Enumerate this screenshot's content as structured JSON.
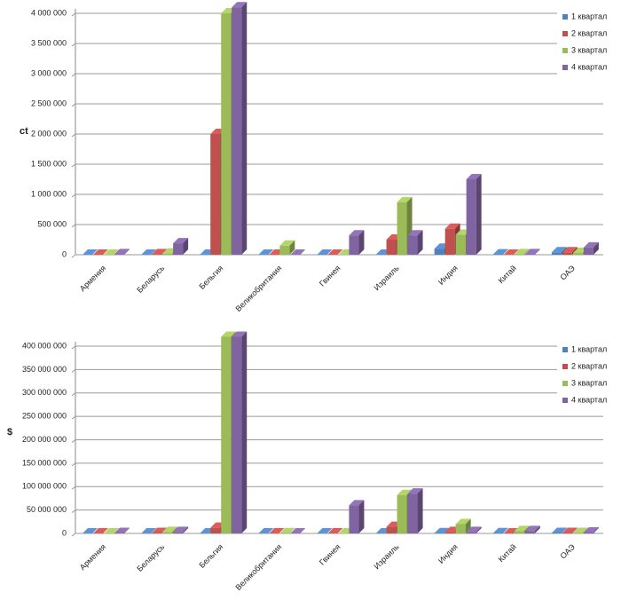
{
  "chart_data": [
    {
      "type": "bar",
      "y_label": "ct",
      "categories": [
        "Армения",
        "Беларусь",
        "Бельгия",
        "Великобритания",
        "Гвинея",
        "Израиль",
        "Индия",
        "Китай",
        "ОАЭ"
      ],
      "series": [
        {
          "name": "1 квартал",
          "color": "#4f81bd",
          "values": [
            0,
            0,
            0,
            0,
            0,
            0,
            100000,
            5000,
            40000
          ]
        },
        {
          "name": "2 квартал",
          "color": "#c0504d",
          "values": [
            0,
            10000,
            2000000,
            0,
            0,
            250000,
            430000,
            0,
            40000
          ]
        },
        {
          "name": "3 квартал",
          "color": "#9bbb59",
          "values": [
            0,
            20000,
            4000000,
            150000,
            0,
            870000,
            330000,
            10000,
            30000
          ]
        },
        {
          "name": "4 квартал",
          "color": "#8064a2",
          "values": [
            10000,
            190000,
            4100000,
            0,
            320000,
            320000,
            1250000,
            10000,
            120000
          ]
        }
      ],
      "ylim": [
        0,
        4000000
      ],
      "yticks": [
        0,
        {
          "value": 500000,
          "label": "500 000"
        },
        {
          "value": 1000000,
          "label": "1 000 000"
        },
        {
          "value": 1500000,
          "label": "1 500 000"
        },
        {
          "value": 2000000,
          "label": "2 000 000"
        },
        {
          "value": 2500000,
          "label": "2 500 000"
        },
        {
          "value": 3000000,
          "label": "3 000 000"
        },
        {
          "value": 3500000,
          "label": "3 500 000"
        },
        {
          "value": 4000000,
          "label": "4 000 000"
        }
      ],
      "grid": true,
      "legend": "right"
    },
    {
      "type": "bar",
      "y_label": "$",
      "categories": [
        "Армения",
        "Беларусь",
        "Бельгия",
        "Великобритания",
        "Гвинея",
        "Израиль",
        "Индия",
        "Китай",
        "ОАЭ"
      ],
      "series": [
        {
          "name": "1 квартал",
          "color": "#4f81bd",
          "values": [
            0,
            0,
            0,
            0,
            0,
            0,
            500000,
            500000,
            1000000
          ]
        },
        {
          "name": "2 квартал",
          "color": "#c0504d",
          "values": [
            0,
            1000000,
            12000000,
            0,
            0,
            14000000,
            3000000,
            0,
            1000000
          ]
        },
        {
          "name": "3 квартал",
          "color": "#9bbb59",
          "values": [
            0,
            3000000,
            420000000,
            500000,
            0,
            82000000,
            20000000,
            5000000,
            1000000
          ]
        },
        {
          "name": "4 квартал",
          "color": "#8064a2",
          "values": [
            1000000,
            3000000,
            420000000,
            0,
            60000000,
            85000000,
            3000000,
            5000000,
            2000000
          ]
        }
      ],
      "ylim": [
        0,
        400000000
      ],
      "yticks": [
        0,
        {
          "value": 50000000,
          "label": "50 000 000"
        },
        {
          "value": 100000000,
          "label": "100 000 000"
        },
        {
          "value": 150000000,
          "label": "150 000 000"
        },
        {
          "value": 200000000,
          "label": "200 000 000"
        },
        {
          "value": 250000000,
          "label": "250 000 000"
        },
        {
          "value": 300000000,
          "label": "300 000 000"
        },
        {
          "value": 350000000,
          "label": "350 000 000"
        },
        {
          "value": 400000000,
          "label": "400 000 000"
        }
      ],
      "grid": true,
      "legend": "right"
    }
  ]
}
